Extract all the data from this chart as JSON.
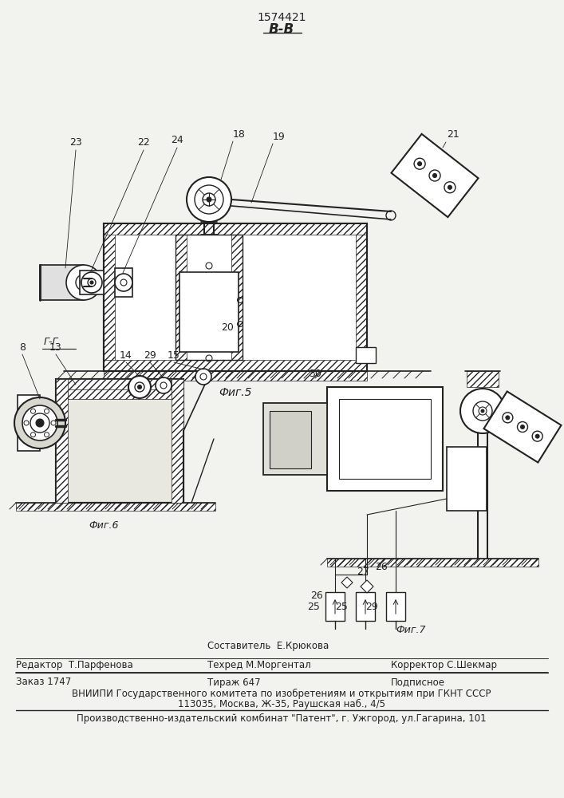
{
  "patent_number": "1574421",
  "section_label": "В-В",
  "fig5_label": "Фиг.5",
  "fig6_label": "Фиг.6",
  "fig7_label": "Фиг.7",
  "gg_label": "Г-Г",
  "background_color": "#f2f2ee",
  "line_color": "#222222",
  "footer": {
    "editor_label": "Редактор  Т.Парфенова",
    "composer_label": "Составитель  Е.Крюкова",
    "techred_label": "Техред М.Моргентал",
    "corrector_label": "Корректор С.Шекмар",
    "order_label": "Заказ 1747",
    "tirazh_label": "Тираж 647",
    "podpisnoe_label": "Подписное",
    "vniiipi_line1": "ВНИИПИ Государственного комитета по изобретениям и открытиям при ГКНТ СССР",
    "vniiipi_line2": "113035, Москва, Ж-35, Раушская наб., 4/5",
    "publisher_line": "Производственно-издательский комбинат \"Патент\", г. Ужгород, ул.Гагарина, 101"
  }
}
